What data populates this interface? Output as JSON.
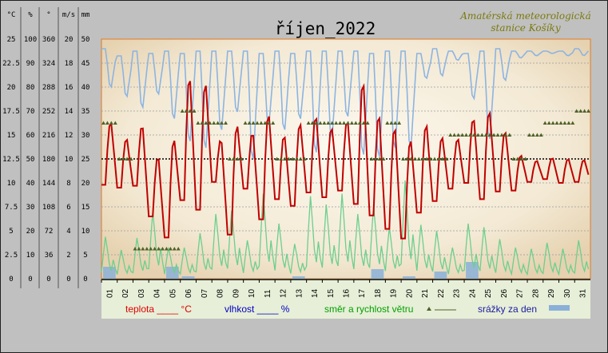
{
  "station": {
    "line1": "Amatérská meteorologická",
    "line2": "stanice Košíky"
  },
  "chart_data": {
    "type": "line",
    "title": "říjen_2022",
    "units": [
      "°C",
      "%",
      "°",
      "m/s",
      "mm"
    ],
    "y_scales": [
      {
        "unit": "°C",
        "ylim": [
          0,
          25
        ],
        "ticks": [
          "25",
          "22.5",
          "20",
          "17.5",
          "15",
          "12.5",
          "10",
          "7.5",
          "5",
          "2.5",
          "0"
        ]
      },
      {
        "unit": "%",
        "ylim": [
          0,
          100
        ],
        "ticks": [
          "100",
          "90",
          "80",
          "70",
          "60",
          "50",
          "40",
          "30",
          "20",
          "10",
          "0"
        ]
      },
      {
        "unit": "°",
        "ylim": [
          0,
          360
        ],
        "ticks": [
          "360",
          "324",
          "288",
          "252",
          "216",
          "180",
          "144",
          "108",
          "72",
          "36",
          "0"
        ]
      },
      {
        "unit": "m/s",
        "ylim": [
          0,
          20
        ],
        "ticks": [
          "20",
          "18",
          "16",
          "14",
          "12",
          "10",
          "8",
          "6",
          "4",
          "2",
          "0"
        ]
      },
      {
        "unit": "mm",
        "ylim": [
          0,
          50
        ],
        "ticks": [
          "50",
          "45",
          "40",
          "35",
          "30",
          "25",
          "20",
          "15",
          "10",
          "5",
          "0"
        ]
      }
    ],
    "categories": [
      "01",
      "02",
      "03",
      "04",
      "05",
      "06",
      "07",
      "08",
      "09",
      "10",
      "11",
      "12",
      "13",
      "14",
      "15",
      "16",
      "17",
      "18",
      "19",
      "20",
      "21",
      "22",
      "23",
      "24",
      "25",
      "26",
      "27",
      "28",
      "29",
      "30",
      "31"
    ],
    "series": [
      {
        "name": "teplota",
        "unit": "°C",
        "color": "#c00000",
        "min": [
          9.8,
          9.5,
          9.7,
          6.5,
          4.3,
          8.2,
          7.2,
          10.1,
          4.6,
          9.4,
          6.2,
          8.3,
          7.6,
          9.0,
          8.5,
          9.2,
          7.8,
          6.6,
          5.2,
          4.2,
          6.9,
          8.1,
          9.4,
          10.0,
          8.3,
          9.1,
          9.2,
          10.1,
          10.4,
          10.0,
          10.1
        ],
        "max": [
          16.6,
          14.8,
          16.3,
          13.0,
          14.8,
          21.5,
          20.8,
          14.8,
          16.3,
          15.5,
          17.5,
          15.2,
          16.5,
          17.2,
          16.0,
          16.8,
          21.0,
          17.5,
          16.2,
          14.8,
          16.4,
          15.0,
          14.8,
          17.0,
          17.8,
          15.6,
          13.0,
          12.4,
          12.7,
          12.6,
          12.5
        ]
      },
      {
        "name": "vlhkost",
        "unit": "%",
        "color": "#8cb4e2",
        "min": [
          79,
          75,
          70,
          76,
          65,
          55,
          52,
          60,
          68,
          47,
          63,
          60,
          65,
          50,
          57,
          66,
          49,
          48,
          52,
          52,
          83,
          84,
          91,
          74,
          56,
          82,
          92,
          93,
          94,
          93,
          93
        ],
        "max": [
          96,
          93,
          95,
          94,
          95,
          94,
          95,
          95,
          95,
          95,
          94,
          95,
          94,
          95,
          95,
          95,
          95,
          94,
          95,
          95,
          94,
          96,
          95,
          94,
          95,
          96,
          95,
          95,
          95,
          95,
          96
        ]
      },
      {
        "name": "směr a rychlost větru",
        "unit": "°",
        "color": "#4f6228",
        "levels": [
          234,
          180,
          45,
          45,
          45,
          252,
          234,
          234,
          180,
          234,
          234,
          180,
          180,
          234,
          234,
          234,
          234,
          180,
          234,
          180,
          180,
          180,
          216,
          216,
          216,
          216,
          180,
          216,
          234,
          234,
          252
        ]
      },
      {
        "name": "rychlost větru",
        "unit": "m/s",
        "color": "#6ccf8e",
        "max": [
          3.5,
          2.4,
          3.4,
          5.6,
          2.6,
          2.6,
          3.8,
          5.4,
          5.7,
          3.2,
          7.1,
          4.6,
          2.9,
          6.9,
          6.2,
          7.1,
          5.4,
          6.1,
          4.3,
          8.2,
          4.5,
          4.0,
          2.6,
          4.6,
          4.3,
          3.3,
          2.6,
          2.5,
          3.0,
          2.5,
          3.2
        ]
      },
      {
        "name": "srážky za den",
        "unit": "mm",
        "color": "#8ab0d8",
        "values": [
          2.5,
          0,
          0,
          0,
          2.5,
          0.5,
          0,
          0,
          0,
          0,
          0,
          0,
          0.5,
          0,
          0,
          0,
          0,
          2.0,
          0,
          0.5,
          0,
          1.5,
          0,
          3.5,
          0,
          0,
          0,
          0,
          0,
          0,
          0
        ]
      }
    ],
    "reference_line": {
      "value": 12.5,
      "unit": "°C"
    }
  },
  "legend": [
    {
      "label": "teplota ____ °C",
      "color": "#e00000"
    },
    {
      "label": "vlhkost ____ %",
      "color": "#0000c0"
    },
    {
      "label": "směr a rychlost větru",
      "color": "#00a000"
    },
    {
      "label": "srážky za den",
      "color": "#1a1aa0"
    }
  ]
}
